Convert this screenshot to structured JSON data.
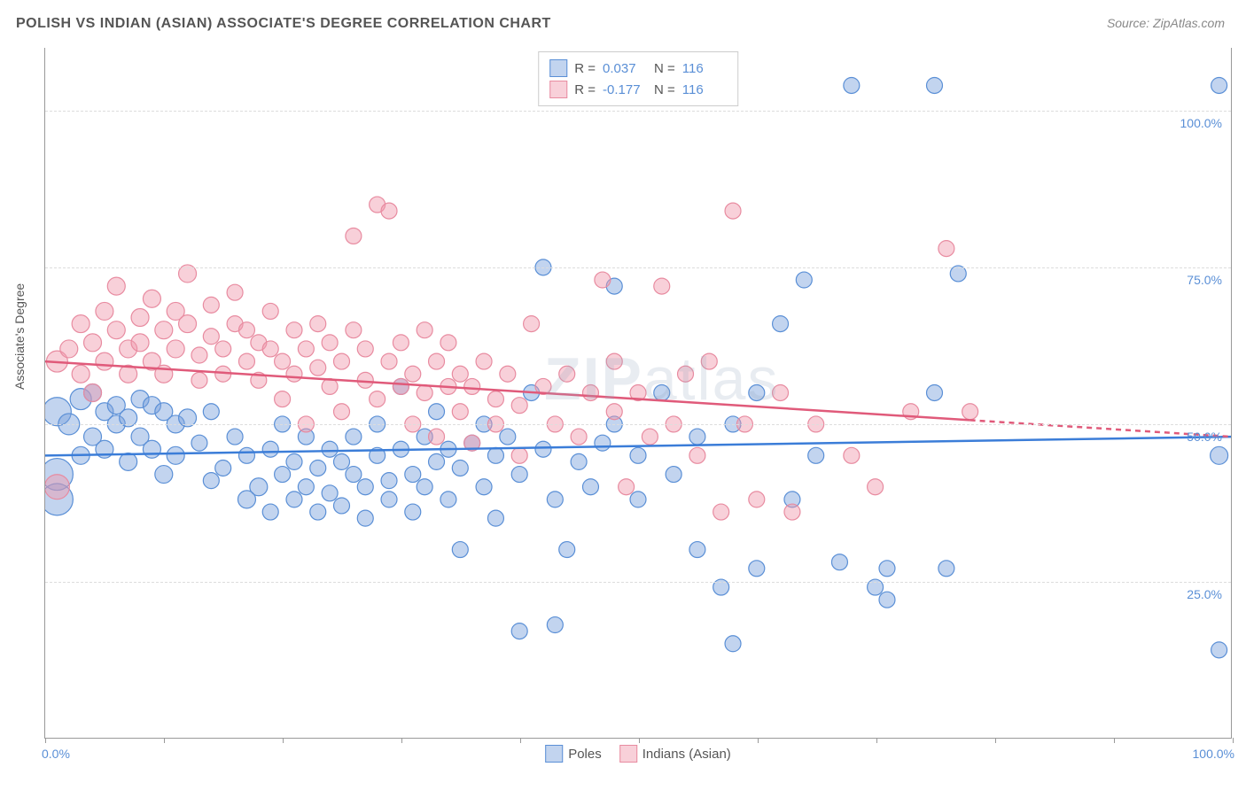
{
  "title": "POLISH VS INDIAN (ASIAN) ASSOCIATE'S DEGREE CORRELATION CHART",
  "source_label": "Source: ",
  "source_name": "ZipAtlas.com",
  "y_axis_label": "Associate's Degree",
  "watermark_a": "ZIP",
  "watermark_b": "atlas",
  "chart": {
    "type": "scatter",
    "xlim": [
      0,
      100
    ],
    "ylim": [
      0,
      110
    ],
    "x_tick_positions": [
      0,
      10,
      20,
      30,
      40,
      50,
      60,
      70,
      80,
      90,
      100
    ],
    "y_ticks": [
      {
        "value": 25,
        "label": "25.0%"
      },
      {
        "value": 50,
        "label": "50.0%"
      },
      {
        "value": 75,
        "label": "75.0%"
      },
      {
        "value": 100,
        "label": "100.0%"
      }
    ],
    "x_labels": {
      "min": "0.0%",
      "max": "100.0%"
    },
    "y_label_color": "#5a8fd6",
    "grid_color": "#dddddd",
    "background_color": "#ffffff",
    "series": [
      {
        "name": "Poles",
        "fill": "rgba(120,160,220,0.45)",
        "stroke": "#5a8fd6",
        "marker_radius_base": 9,
        "trendline": {
          "y_at_x0": 45,
          "y_at_x100": 48,
          "solid_until_x": 100,
          "color": "#3b7dd8",
          "width": 2.5
        },
        "points": [
          [
            1,
            42,
            18
          ],
          [
            1,
            38,
            18
          ],
          [
            1,
            52,
            16
          ],
          [
            2,
            50,
            12
          ],
          [
            3,
            54,
            12
          ],
          [
            3,
            45,
            10
          ],
          [
            4,
            55,
            10
          ],
          [
            4,
            48,
            10
          ],
          [
            5,
            52,
            10
          ],
          [
            5,
            46,
            10
          ],
          [
            6,
            53,
            10
          ],
          [
            6,
            50,
            10
          ],
          [
            7,
            51,
            10
          ],
          [
            7,
            44,
            10
          ],
          [
            8,
            54,
            10
          ],
          [
            8,
            48,
            10
          ],
          [
            9,
            53,
            10
          ],
          [
            9,
            46,
            10
          ],
          [
            10,
            52,
            10
          ],
          [
            10,
            42,
            10
          ],
          [
            11,
            50,
            10
          ],
          [
            11,
            45,
            10
          ],
          [
            12,
            51,
            10
          ],
          [
            13,
            47,
            9
          ],
          [
            14,
            52,
            9
          ],
          [
            14,
            41,
            9
          ],
          [
            15,
            43,
            9
          ],
          [
            16,
            48,
            9
          ],
          [
            17,
            38,
            10
          ],
          [
            17,
            45,
            9
          ],
          [
            18,
            40,
            10
          ],
          [
            19,
            46,
            9
          ],
          [
            19,
            36,
            9
          ],
          [
            20,
            42,
            9
          ],
          [
            20,
            50,
            9
          ],
          [
            21,
            38,
            9
          ],
          [
            21,
            44,
            9
          ],
          [
            22,
            40,
            9
          ],
          [
            22,
            48,
            9
          ],
          [
            23,
            36,
            9
          ],
          [
            23,
            43,
            9
          ],
          [
            24,
            46,
            9
          ],
          [
            24,
            39,
            9
          ],
          [
            25,
            44,
            9
          ],
          [
            25,
            37,
            9
          ],
          [
            26,
            42,
            9
          ],
          [
            26,
            48,
            9
          ],
          [
            27,
            40,
            9
          ],
          [
            27,
            35,
            9
          ],
          [
            28,
            45,
            9
          ],
          [
            28,
            50,
            9
          ],
          [
            29,
            41,
            9
          ],
          [
            29,
            38,
            9
          ],
          [
            30,
            46,
            9
          ],
          [
            30,
            56,
            9
          ],
          [
            31,
            42,
            9
          ],
          [
            31,
            36,
            9
          ],
          [
            32,
            48,
            9
          ],
          [
            32,
            40,
            9
          ],
          [
            33,
            44,
            9
          ],
          [
            33,
            52,
            9
          ],
          [
            34,
            38,
            9
          ],
          [
            34,
            46,
            9
          ],
          [
            35,
            43,
            9
          ],
          [
            35,
            30,
            9
          ],
          [
            36,
            47,
            9
          ],
          [
            37,
            50,
            9
          ],
          [
            37,
            40,
            9
          ],
          [
            38,
            35,
            9
          ],
          [
            38,
            45,
            9
          ],
          [
            39,
            48,
            9
          ],
          [
            40,
            42,
            9
          ],
          [
            40,
            17,
            9
          ],
          [
            41,
            55,
            9
          ],
          [
            42,
            46,
            9
          ],
          [
            42,
            75,
            9
          ],
          [
            43,
            38,
            9
          ],
          [
            43,
            18,
            9
          ],
          [
            44,
            30,
            9
          ],
          [
            45,
            44,
            9
          ],
          [
            46,
            40,
            9
          ],
          [
            47,
            47,
            9
          ],
          [
            48,
            50,
            9
          ],
          [
            48,
            72,
            9
          ],
          [
            50,
            45,
            9
          ],
          [
            50,
            38,
            9
          ],
          [
            52,
            55,
            9
          ],
          [
            53,
            42,
            9
          ],
          [
            55,
            30,
            9
          ],
          [
            55,
            48,
            9
          ],
          [
            57,
            24,
            9
          ],
          [
            58,
            50,
            9
          ],
          [
            58,
            15,
            9
          ],
          [
            60,
            27,
            9
          ],
          [
            60,
            55,
            9
          ],
          [
            62,
            66,
            9
          ],
          [
            63,
            38,
            9
          ],
          [
            64,
            73,
            9
          ],
          [
            65,
            45,
            9
          ],
          [
            67,
            28,
            9
          ],
          [
            68,
            104,
            9
          ],
          [
            70,
            24,
            9
          ],
          [
            71,
            27,
            9
          ],
          [
            71,
            22,
            9
          ],
          [
            75,
            104,
            9
          ],
          [
            75,
            55,
            9
          ],
          [
            76,
            27,
            9
          ],
          [
            77,
            74,
            9
          ],
          [
            99,
            45,
            10
          ],
          [
            99,
            104,
            9
          ],
          [
            99,
            14,
            9
          ]
        ]
      },
      {
        "name": "Indians (Asian)",
        "fill": "rgba(240,150,170,0.45)",
        "stroke": "#e88ba0",
        "marker_radius_base": 9,
        "trendline": {
          "y_at_x0": 60,
          "y_at_x100": 48,
          "solid_until_x": 78,
          "color": "#e05a7a",
          "width": 2.5
        },
        "points": [
          [
            1,
            60,
            12
          ],
          [
            1,
            40,
            14
          ],
          [
            2,
            62,
            10
          ],
          [
            3,
            58,
            10
          ],
          [
            3,
            66,
            10
          ],
          [
            4,
            63,
            10
          ],
          [
            4,
            55,
            10
          ],
          [
            5,
            68,
            10
          ],
          [
            5,
            60,
            10
          ],
          [
            6,
            65,
            10
          ],
          [
            6,
            72,
            10
          ],
          [
            7,
            62,
            10
          ],
          [
            7,
            58,
            10
          ],
          [
            8,
            67,
            10
          ],
          [
            8,
            63,
            10
          ],
          [
            9,
            60,
            10
          ],
          [
            9,
            70,
            10
          ],
          [
            10,
            65,
            10
          ],
          [
            10,
            58,
            10
          ],
          [
            11,
            68,
            10
          ],
          [
            11,
            62,
            10
          ],
          [
            12,
            66,
            10
          ],
          [
            12,
            74,
            10
          ],
          [
            13,
            61,
            9
          ],
          [
            13,
            57,
            9
          ],
          [
            14,
            69,
            9
          ],
          [
            14,
            64,
            9
          ],
          [
            15,
            62,
            9
          ],
          [
            15,
            58,
            9
          ],
          [
            16,
            66,
            9
          ],
          [
            16,
            71,
            9
          ],
          [
            17,
            60,
            9
          ],
          [
            17,
            65,
            9
          ],
          [
            18,
            63,
            9
          ],
          [
            18,
            57,
            9
          ],
          [
            19,
            68,
            9
          ],
          [
            19,
            62,
            9
          ],
          [
            20,
            54,
            9
          ],
          [
            20,
            60,
            9
          ],
          [
            21,
            65,
            9
          ],
          [
            21,
            58,
            9
          ],
          [
            22,
            62,
            9
          ],
          [
            22,
            50,
            9
          ],
          [
            23,
            66,
            9
          ],
          [
            23,
            59,
            9
          ],
          [
            24,
            56,
            9
          ],
          [
            24,
            63,
            9
          ],
          [
            25,
            52,
            9
          ],
          [
            25,
            60,
            9
          ],
          [
            26,
            65,
            9
          ],
          [
            26,
            80,
            9
          ],
          [
            27,
            57,
            9
          ],
          [
            27,
            62,
            9
          ],
          [
            28,
            54,
            9
          ],
          [
            28,
            85,
            9
          ],
          [
            29,
            60,
            9
          ],
          [
            29,
            84,
            9
          ],
          [
            30,
            56,
            9
          ],
          [
            30,
            63,
            9
          ],
          [
            31,
            58,
            9
          ],
          [
            31,
            50,
            9
          ],
          [
            32,
            65,
            9
          ],
          [
            32,
            55,
            9
          ],
          [
            33,
            60,
            9
          ],
          [
            33,
            48,
            9
          ],
          [
            34,
            56,
            9
          ],
          [
            34,
            63,
            9
          ],
          [
            35,
            52,
            9
          ],
          [
            35,
            58,
            9
          ],
          [
            36,
            47,
            9
          ],
          [
            36,
            56,
            9
          ],
          [
            37,
            60,
            9
          ],
          [
            38,
            50,
            9
          ],
          [
            38,
            54,
            9
          ],
          [
            39,
            58,
            9
          ],
          [
            40,
            45,
            9
          ],
          [
            40,
            53,
            9
          ],
          [
            41,
            66,
            9
          ],
          [
            42,
            56,
            9
          ],
          [
            43,
            50,
            9
          ],
          [
            44,
            58,
            9
          ],
          [
            45,
            48,
            9
          ],
          [
            46,
            55,
            9
          ],
          [
            47,
            73,
            9
          ],
          [
            48,
            52,
            9
          ],
          [
            48,
            60,
            9
          ],
          [
            49,
            40,
            9
          ],
          [
            50,
            55,
            9
          ],
          [
            51,
            48,
            9
          ],
          [
            52,
            72,
            9
          ],
          [
            53,
            50,
            9
          ],
          [
            54,
            58,
            9
          ],
          [
            55,
            45,
            9
          ],
          [
            56,
            60,
            9
          ],
          [
            57,
            36,
            9
          ],
          [
            58,
            84,
            9
          ],
          [
            59,
            50,
            9
          ],
          [
            60,
            38,
            9
          ],
          [
            62,
            55,
            9
          ],
          [
            63,
            36,
            9
          ],
          [
            65,
            50,
            9
          ],
          [
            68,
            45,
            9
          ],
          [
            70,
            40,
            9
          ],
          [
            73,
            52,
            9
          ],
          [
            76,
            78,
            9
          ],
          [
            78,
            52,
            9
          ]
        ]
      }
    ]
  },
  "correlation_box": {
    "r_label": "R =",
    "n_label": "N =",
    "rows": [
      {
        "swatch_fill": "rgba(120,160,220,0.45)",
        "swatch_stroke": "#5a8fd6",
        "r": "0.037",
        "n": "116"
      },
      {
        "swatch_fill": "rgba(240,150,170,0.45)",
        "swatch_stroke": "#e88ba0",
        "r": "-0.177",
        "n": "116"
      }
    ]
  },
  "legend_bottom": [
    {
      "swatch_fill": "rgba(120,160,220,0.45)",
      "swatch_stroke": "#5a8fd6",
      "label": "Poles"
    },
    {
      "swatch_fill": "rgba(240,150,170,0.45)",
      "swatch_stroke": "#e88ba0",
      "label": "Indians (Asian)"
    }
  ]
}
